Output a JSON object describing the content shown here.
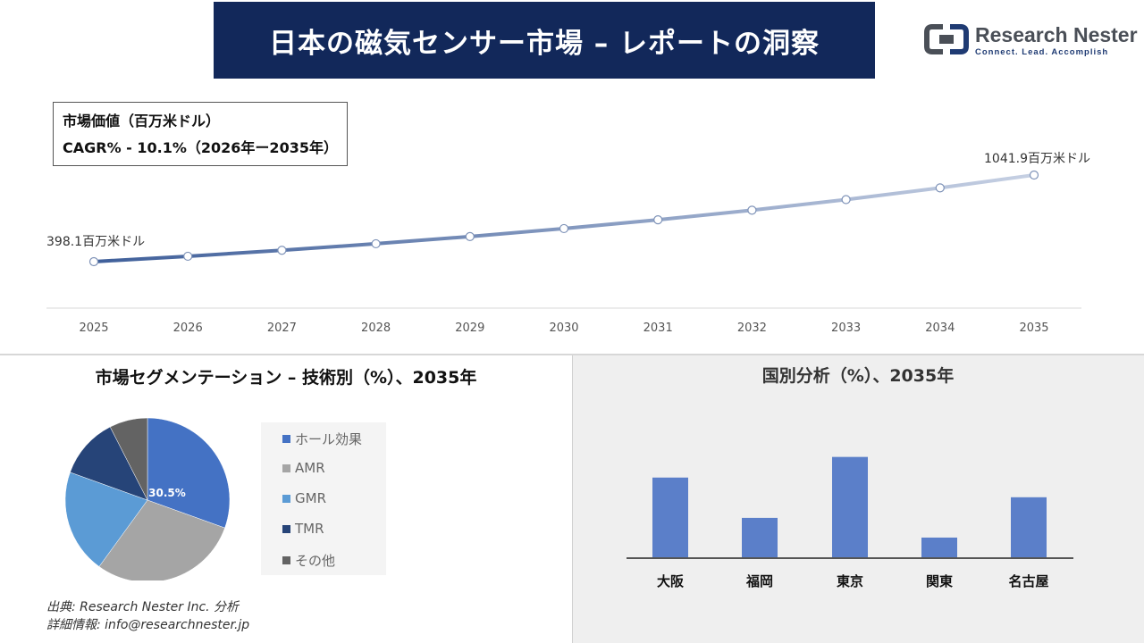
{
  "header": {
    "title": "日本の磁気センサー市場 – レポートの洞察",
    "logo_brand": "Research Nester",
    "logo_tagline": "Connect. Lead. Accomplish"
  },
  "kpi": {
    "line1": "市場価値（百万米ドル）",
    "line2": "CAGR% - 10.1%（2026年ー2035年）"
  },
  "colors": {
    "banner": "#12285a",
    "line_start": "#3f5f9a",
    "line_end": "#c6d0e3",
    "bar": "#5b7fc9"
  },
  "chart_data": [
    {
      "type": "line",
      "title": "",
      "x": [
        "2025",
        "2026",
        "2027",
        "2028",
        "2029",
        "2030",
        "2031",
        "2032",
        "2033",
        "2034",
        "2035"
      ],
      "values": [
        398.1,
        438.3,
        482.6,
        531.3,
        585.0,
        644.1,
        709.1,
        780.7,
        859.6,
        946.4,
        1041.9
      ],
      "start_label": "398.1百万米ドル",
      "end_label": "1041.9百万米ドル",
      "grid": false
    },
    {
      "type": "pie",
      "title": "市場セグメンテーション – 技術別（%）、2035年",
      "categories": [
        "ホール効果",
        "AMR",
        "GMR",
        "TMR",
        "その他"
      ],
      "values": [
        30.5,
        29.5,
        20.5,
        12.0,
        7.5
      ],
      "colors": [
        "#4472c4",
        "#a5a5a5",
        "#5b9bd5",
        "#264478",
        "#636363"
      ],
      "data_label": "30.5%",
      "legend": "right"
    },
    {
      "type": "bar",
      "title": "国別分析（%）、2035年",
      "categories": [
        "大阪",
        "福岡",
        "東京",
        "関東",
        "名古屋"
      ],
      "values": [
        85,
        42,
        107,
        21,
        64
      ],
      "ylim": [
        0,
        120
      ],
      "grid": false
    }
  ],
  "source": {
    "line1": "出典: Research Nester Inc. 分析",
    "line2": "詳細情報: info@researchnester.jp"
  }
}
